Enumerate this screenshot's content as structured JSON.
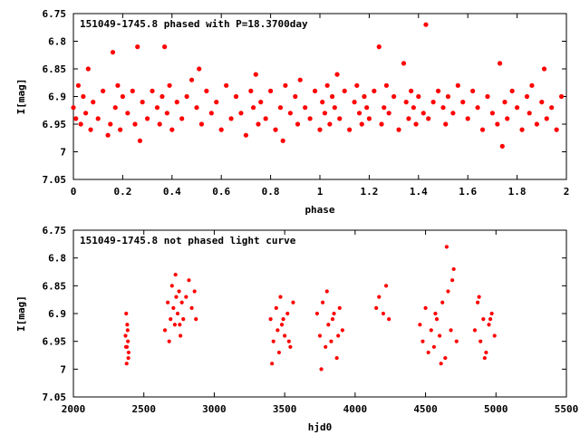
{
  "chart_data": [
    {
      "type": "scatter",
      "title": "151049-1745.8 phased with P=18.3700day",
      "xlabel": "phase",
      "ylabel": "I[mag]",
      "xlim": [
        0,
        2
      ],
      "ylim": [
        7.05,
        6.75
      ],
      "y_inverted": true,
      "xticks": [
        "0",
        "0.2",
        "0.4",
        "0.6",
        "0.8",
        "1",
        "1.2",
        "1.4",
        "1.6",
        "1.8",
        "2"
      ],
      "yticks": [
        "6.75",
        "6.8",
        "6.85",
        "6.9",
        "6.95",
        "7",
        "7.05"
      ],
      "grid": false,
      "marker": "filled-circle",
      "color": "#ff0000",
      "series": [
        {
          "x": [
            0.0,
            0.01,
            0.02,
            0.03,
            0.04,
            0.05,
            0.06,
            0.07,
            0.08,
            0.1,
            0.12,
            0.14,
            0.15,
            0.16,
            0.17,
            0.18,
            0.19,
            0.2,
            0.22,
            0.24,
            0.25,
            0.26,
            0.27,
            0.28,
            0.3,
            0.32,
            0.34,
            0.35,
            0.36,
            0.37,
            0.38,
            0.39,
            0.4,
            0.42,
            0.44,
            0.46,
            0.48,
            0.5,
            0.51,
            0.52,
            0.54,
            0.56,
            0.58,
            0.6,
            0.62,
            0.64,
            0.66,
            0.68,
            0.7,
            0.72,
            0.73,
            0.74,
            0.75,
            0.76,
            0.78,
            0.8,
            0.82,
            0.84,
            0.85,
            0.86,
            0.88,
            0.9,
            0.91,
            0.92,
            0.94,
            0.96,
            0.98,
            1.0,
            1.01,
            1.02,
            1.03,
            1.04,
            1.05,
            1.06,
            1.07,
            1.08,
            1.1,
            1.12,
            1.14,
            1.15,
            1.16,
            1.17,
            1.18,
            1.19,
            1.2,
            1.22,
            1.24,
            1.25,
            1.26,
            1.27,
            1.28,
            1.3,
            1.32,
            1.34,
            1.35,
            1.36,
            1.37,
            1.38,
            1.39,
            1.4,
            1.42,
            1.43,
            1.44,
            1.46,
            1.48,
            1.5,
            1.51,
            1.52,
            1.54,
            1.56,
            1.58,
            1.6,
            1.62,
            1.64,
            1.66,
            1.68,
            1.7,
            1.72,
            1.73,
            1.74,
            1.75,
            1.76,
            1.78,
            1.8,
            1.82,
            1.84,
            1.85,
            1.86,
            1.88,
            1.9,
            1.91,
            1.92,
            1.94,
            1.96,
            1.98
          ],
          "y": [
            6.92,
            6.94,
            6.88,
            6.95,
            6.9,
            6.93,
            6.85,
            6.96,
            6.91,
            6.94,
            6.89,
            6.97,
            6.95,
            6.82,
            6.92,
            6.88,
            6.96,
            6.9,
            6.93,
            6.89,
            6.95,
            6.81,
            6.98,
            6.91,
            6.94,
            6.89,
            6.92,
            6.95,
            6.9,
            6.81,
            6.93,
            6.88,
            6.96,
            6.91,
            6.94,
            6.9,
            6.87,
            6.92,
            6.85,
            6.95,
            6.89,
            6.93,
            6.91,
            6.96,
            6.88,
            6.94,
            6.9,
            6.93,
            6.97,
            6.89,
            6.92,
            6.86,
            6.95,
            6.91,
            6.94,
            6.89,
            6.96,
            6.92,
            6.98,
            6.88,
            6.93,
            6.9,
            6.95,
            6.87,
            6.92,
            6.94,
            6.89,
            6.96,
            6.91,
            6.93,
            6.88,
            6.95,
            6.9,
            6.92,
            6.86,
            6.94,
            6.89,
            6.96,
            6.91,
            6.88,
            6.93,
            6.95,
            6.9,
            6.92,
            6.94,
            6.89,
            6.81,
            6.95,
            6.92,
            6.88,
            6.93,
            6.9,
            6.96,
            6.84,
            6.91,
            6.94,
            6.89,
            6.92,
            6.95,
            6.9,
            6.93,
            6.77,
            6.94,
            6.91,
            6.89,
            6.92,
            6.95,
            6.9,
            6.93,
            6.88,
            6.91,
            6.94,
            6.89,
            6.92,
            6.96,
            6.9,
            6.93,
            6.95,
            6.84,
            6.99,
            6.91,
            6.94,
            6.89,
            6.92,
            6.96,
            6.9,
            6.93,
            6.88,
            6.95,
            6.91,
            6.85,
            6.94,
            6.92,
            6.96,
            6.9
          ]
        }
      ]
    },
    {
      "type": "scatter",
      "title": "151049-1745.8 not phased light curve",
      "xlabel": "hjd0",
      "ylabel": "I[mag]",
      "xlim": [
        2000,
        5500
      ],
      "ylim": [
        7.05,
        6.75
      ],
      "y_inverted": true,
      "xticks": [
        "2000",
        "2500",
        "3000",
        "3500",
        "4000",
        "4500",
        "5000",
        "5500"
      ],
      "yticks": [
        "6.75",
        "6.8",
        "6.85",
        "6.9",
        "6.95",
        "7",
        "7.05"
      ],
      "grid": false,
      "marker": "filled-circle",
      "color": "#ff0000",
      "series": [
        {
          "x": [
            2370,
            2375,
            2380,
            2385,
            2390,
            2378,
            2382,
            2387,
            2373,
            2392,
            2650,
            2670,
            2690,
            2700,
            2710,
            2720,
            2730,
            2740,
            2750,
            2760,
            2770,
            2780,
            2800,
            2820,
            2840,
            2860,
            2870,
            2680,
            2725,
            2755,
            3400,
            3420,
            3440,
            3460,
            3480,
            3500,
            3520,
            3540,
            3560,
            3410,
            3450,
            3490,
            3530,
            3470,
            3730,
            3750,
            3770,
            3790,
            3810,
            3830,
            3850,
            3870,
            3890,
            3910,
            3760,
            3800,
            3840,
            3880,
            4150,
            4170,
            4200,
            4220,
            4240,
            4460,
            4480,
            4500,
            4520,
            4540,
            4560,
            4580,
            4600,
            4620,
            4640,
            4660,
            4680,
            4700,
            4720,
            4650,
            4610,
            4570,
            4690,
            4850,
            4870,
            4890,
            4910,
            4930,
            4950,
            4970,
            4990,
            4880,
            4920,
            4960
          ],
          "y": [
            6.94,
            6.9,
            6.96,
            6.93,
            6.98,
            6.99,
            6.92,
            6.95,
            6.96,
            6.97,
            6.93,
            6.88,
            6.91,
            6.85,
            6.89,
            6.92,
            6.87,
            6.9,
            6.86,
            6.94,
            6.88,
            6.91,
            6.87,
            6.84,
            6.89,
            6.86,
            6.91,
            6.95,
            6.83,
            6.92,
            6.91,
            6.95,
            6.89,
            6.97,
            6.92,
            6.94,
            6.9,
            6.96,
            6.88,
            6.99,
            6.93,
            6.91,
            6.95,
            6.87,
            6.9,
            6.94,
            6.88,
            6.96,
            6.92,
            6.95,
            6.9,
            6.98,
            6.89,
            6.93,
            7.0,
            6.86,
            6.91,
            6.94,
            6.89,
            6.87,
            6.9,
            6.85,
            6.91,
            6.92,
            6.95,
            6.89,
            6.97,
            6.93,
            6.96,
            6.91,
            6.94,
            6.88,
            6.98,
            6.86,
            6.93,
            6.82,
            6.95,
            6.78,
            6.99,
            6.9,
            6.84,
            6.93,
            6.88,
            6.95,
            6.91,
            6.97,
            6.92,
            6.9,
            6.94,
            6.87,
            6.98,
            6.91
          ]
        }
      ]
    }
  ]
}
